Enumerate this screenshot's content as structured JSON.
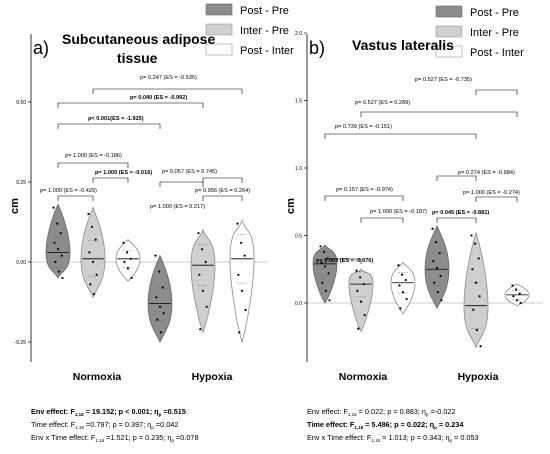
{
  "legend": [
    {
      "label": "Post - Pre",
      "color": "#8c8c8c"
    },
    {
      "label": "Inter - Pre",
      "color": "#cfcfcf"
    },
    {
      "label": "Post - Inter",
      "color": "#ffffff"
    }
  ],
  "colors": {
    "post_pre": "#8c8c8c",
    "inter_pre": "#cfcfcf",
    "post_inter": "#ffffff",
    "zero_line": "#bbbbbb",
    "axis": "#000000"
  },
  "chart_data": [
    {
      "type": "violin",
      "panel_letter": "a)",
      "title_line1": "Subcutaneous adipose",
      "title_line2": "tissue",
      "ylabel": "cm",
      "ylim": [
        -0.25,
        0.5
      ],
      "yticks": [
        "0.50",
        "0.25",
        "0.00",
        "-0.25"
      ],
      "ytick_values": [
        0.5,
        0.25,
        0.0,
        -0.25
      ],
      "categories": [
        "Normoxia",
        "Hypoxia"
      ],
      "series": [
        {
          "name": "Post - Pre",
          "groups": [
            {
              "category": "Normoxia",
              "median": 0.03,
              "min": -0.05,
              "max": 0.18,
              "points": [
                0.17,
                0.12,
                0.09,
                0.06,
                0.04,
                0.02,
                0.0,
                -0.03,
                -0.05
              ]
            },
            {
              "category": "Hypoxia",
              "median": -0.13,
              "min": -0.25,
              "max": 0.02,
              "points": [
                0.02,
                -0.03,
                -0.08,
                -0.11,
                -0.14,
                -0.16,
                -0.18,
                -0.22
              ]
            }
          ]
        },
        {
          "name": "Inter - Pre",
          "groups": [
            {
              "category": "Normoxia",
              "median": 0.01,
              "min": -0.11,
              "max": 0.17,
              "points": [
                0.15,
                0.11,
                0.07,
                0.03,
                0.0,
                -0.04,
                -0.07,
                -0.1
              ]
            },
            {
              "category": "Hypoxia",
              "median": -0.01,
              "min": -0.22,
              "max": 0.1,
              "points": [
                0.09,
                0.04,
                0.0,
                -0.04,
                -0.09,
                -0.14,
                -0.21
              ]
            }
          ]
        },
        {
          "name": "Post - Inter",
          "groups": [
            {
              "category": "Normoxia",
              "median": 0.01,
              "min": -0.06,
              "max": 0.07,
              "points": [
                0.06,
                0.03,
                0.01,
                0.0,
                -0.02,
                -0.05
              ]
            },
            {
              "category": "Hypoxia",
              "median": 0.01,
              "min": -0.25,
              "max": 0.13,
              "points": [
                0.12,
                0.06,
                0.02,
                -0.04,
                -0.09,
                -0.15,
                -0.22
              ]
            }
          ]
        }
      ],
      "comparisons": [
        {
          "text": "p= 0.247 (ES = -0.535)",
          "bold": false
        },
        {
          "text": "p= 0.040 (ES = -0.992)",
          "bold": true
        },
        {
          "text": "p< 0.001(ES = -1.925)",
          "bold": true
        },
        {
          "text": "p= 1.000 (ES = -0.186)",
          "bold": false
        },
        {
          "text": "p= 1.000 (ES = -0.016)",
          "bold": true
        },
        {
          "text": "p= 1.000 (ES = -0.429)",
          "bold": false
        },
        {
          "text": "p= 0.057 (ES = 0.745)",
          "bold": false
        },
        {
          "text": "p= 1.000 (ES = 0.217)",
          "bold": false
        },
        {
          "text": "p= 0.956 (ES = 0.264)",
          "bold": false
        }
      ],
      "stats": [
        {
          "label": "Env effect:",
          "f_sub": "1,18",
          "text": " = 19.152; p < 0.001; η",
          "sq_sub": "p",
          "tail": " =0.515",
          "bold": true
        },
        {
          "label": "Time effect:",
          "f_sub": "1,18",
          "text": " =0.797; p = 0.397; η",
          "sq_sub": "p",
          "tail": " =0.042",
          "bold": false
        },
        {
          "label": "Env x Time effect:",
          "f_sub": "1,18",
          "text": " =1.521; p = 0.235; η",
          "sq_sub": "p",
          "tail": " =0.078",
          "bold": false
        }
      ]
    },
    {
      "type": "violin",
      "panel_letter": "b)",
      "title_line1": "Vastus lateralis",
      "title_line2": "",
      "ylabel": "cm",
      "ylim": [
        -0.5,
        2.0
      ],
      "yticks": [
        "2.0",
        "1.5",
        "1.0",
        "0.5",
        "0.0"
      ],
      "ytick_values": [
        2.0,
        1.5,
        1.0,
        0.5,
        0.0
      ],
      "categories": [
        "Normoxia",
        "Hypoxia"
      ],
      "series": [
        {
          "name": "Post - Pre",
          "groups": [
            {
              "category": "Normoxia",
              "median": 0.29,
              "min": 0.0,
              "max": 0.43,
              "points": [
                0.42,
                0.38,
                0.33,
                0.3,
                0.27,
                0.22,
                0.15,
                0.09,
                0.02
              ]
            },
            {
              "category": "Hypoxia",
              "median": 0.25,
              "min": -0.04,
              "max": 0.57,
              "points": [
                0.55,
                0.45,
                0.37,
                0.31,
                0.26,
                0.2,
                0.15,
                0.08,
                0.02
              ]
            }
          ]
        },
        {
          "name": "Inter - Pre",
          "groups": [
            {
              "category": "Normoxia",
              "median": 0.14,
              "min": -0.21,
              "max": 0.25,
              "points": [
                0.24,
                0.19,
                0.14,
                0.09,
                0.01,
                -0.09,
                -0.19
              ]
            },
            {
              "category": "Hypoxia",
              "median": -0.02,
              "min": -0.33,
              "max": 0.52,
              "points": [
                0.5,
                0.44,
                0.33,
                0.25,
                0.15,
                0.05,
                -0.05,
                -0.2,
                -0.32
              ]
            }
          ]
        },
        {
          "name": "Post - Inter",
          "groups": [
            {
              "category": "Normoxia",
              "median": 0.15,
              "min": -0.08,
              "max": 0.3,
              "points": [
                0.28,
                0.21,
                0.17,
                0.13,
                0.08,
                0.03,
                -0.04
              ]
            },
            {
              "category": "Hypoxia",
              "median": 0.06,
              "min": -0.02,
              "max": 0.14,
              "points": [
                0.13,
                0.1,
                0.07,
                0.05,
                0.02,
                0.0
              ]
            }
          ]
        }
      ],
      "comparisons": [
        {
          "text": "p= 0.527 (ES = -0.735)",
          "bold": false
        },
        {
          "text": "p= 0.527 (ES = 0.289)",
          "bold": false
        },
        {
          "text": "p= 0.739 (ES = -0.151)",
          "bold": false
        },
        {
          "text": "p= 0.157 (ES = -0.974)",
          "bold": false
        },
        {
          "text": "p= 1.000 (ES = -0.187)",
          "bold": false
        },
        {
          "text": "p= 0.003 (ES = -0.976)",
          "bold": true
        },
        {
          "text": "p= 0.274 (ES = -0.684)",
          "bold": false
        },
        {
          "text": "p= 1.000 (ES = -0.274)",
          "bold": false
        },
        {
          "text": "p= 0.045 (ES = -0.881)",
          "bold": true
        }
      ],
      "stats": [
        {
          "label": "Env effect:",
          "f_sub": "1,18",
          "text": " = 0.022; p = 0.883; η",
          "sq_sub": "p",
          "tail": " =-0.022",
          "bold": false
        },
        {
          "label": "Time effect:",
          "f_sub": "1,18",
          "text": " = 5.486; p = 0.022; η",
          "sq_sub": "p",
          "tail": " = 0.234",
          "bold": true
        },
        {
          "label": "Env x Time effect:",
          "f_sub": "1,18",
          "text": " = 1.013; p = 0.343; η",
          "sq_sub": "p",
          "tail": " = 0.053",
          "bold": false
        }
      ]
    }
  ]
}
